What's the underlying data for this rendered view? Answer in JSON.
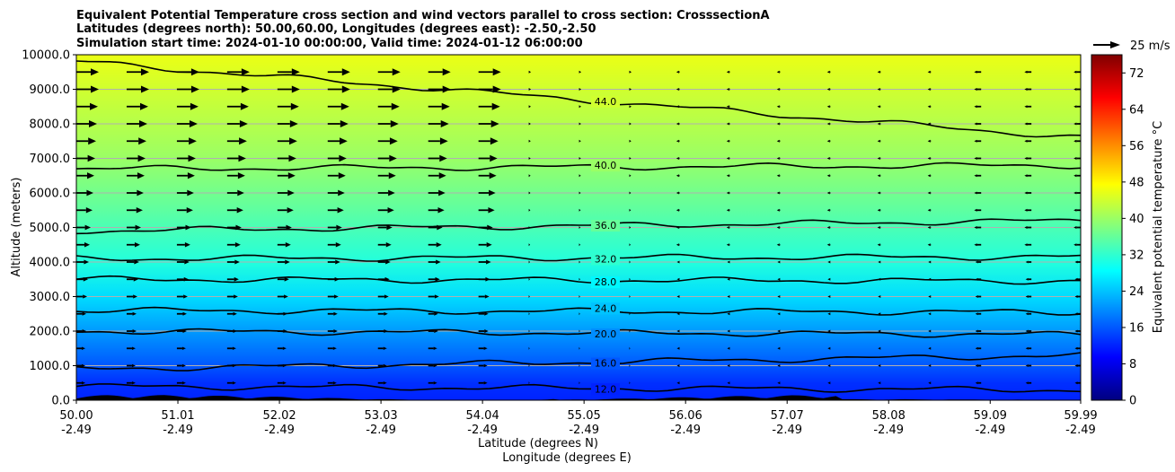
{
  "chart_data": {
    "type": "heatmap",
    "title_lines": [
      "Equivalent Potential Temperature cross section and wind vectors parallel to cross section: CrosssectionA",
      "Latitudes (degrees north): 50.00,60.00, Longitudes (degrees east): -2.50,-2.50",
      "Simulation start time: 2024-01-10 00:00:00, Valid time: 2024-01-12 06:00:00"
    ],
    "xlabel_lat": "Latitude (degrees N)",
    "xlabel_lon": "Longitude (degrees E)",
    "ylabel": "Altitude (meters)",
    "colorbar_label": "Equivalent potential temperature °C",
    "quiver_key_label": "25 m/s",
    "x_range": [
      50.0,
      59.99
    ],
    "ylim": [
      0,
      10000
    ],
    "x_ticks": [
      {
        "lat": "50.00",
        "lon": "-2.49",
        "value": 50.0
      },
      {
        "lat": "51.01",
        "lon": "-2.49",
        "value": 51.01
      },
      {
        "lat": "52.02",
        "lon": "-2.49",
        "value": 52.02
      },
      {
        "lat": "53.03",
        "lon": "-2.49",
        "value": 53.03
      },
      {
        "lat": "54.04",
        "lon": "-2.49",
        "value": 54.04
      },
      {
        "lat": "55.05",
        "lon": "-2.49",
        "value": 55.05
      },
      {
        "lat": "56.06",
        "lon": "-2.49",
        "value": 56.06
      },
      {
        "lat": "57.07",
        "lon": "-2.49",
        "value": 57.07
      },
      {
        "lat": "58.08",
        "lon": "-2.49",
        "value": 58.08
      },
      {
        "lat": "59.09",
        "lon": "-2.49",
        "value": 59.09
      },
      {
        "lat": "59.99",
        "lon": "-2.49",
        "value": 59.99
      }
    ],
    "y_ticks": [
      {
        "label": "0.0",
        "value": 0
      },
      {
        "label": "1000.0",
        "value": 1000
      },
      {
        "label": "2000.0",
        "value": 2000
      },
      {
        "label": "3000.0",
        "value": 3000
      },
      {
        "label": "4000.0",
        "value": 4000
      },
      {
        "label": "5000.0",
        "value": 5000
      },
      {
        "label": "6000.0",
        "value": 6000
      },
      {
        "label": "7000.0",
        "value": 7000
      },
      {
        "label": "8000.0",
        "value": 8000
      },
      {
        "label": "9000.0",
        "value": 9000
      },
      {
        "label": "10000.0",
        "value": 10000
      }
    ],
    "grid": "horizontal",
    "colorbar": {
      "range": [
        0,
        76
      ],
      "ticks": [
        {
          "label": "0",
          "value": 0
        },
        {
          "label": "8",
          "value": 8
        },
        {
          "label": "16",
          "value": 16
        },
        {
          "label": "24",
          "value": 24
        },
        {
          "label": "32",
          "value": 32
        },
        {
          "label": "40",
          "value": 40
        },
        {
          "label": "48",
          "value": 48
        },
        {
          "label": "56",
          "value": 56
        },
        {
          "label": "64",
          "value": 64
        },
        {
          "label": "72",
          "value": 72
        }
      ],
      "colormap": "jet"
    },
    "field_profile": [
      {
        "altitude": 0,
        "theta_e": 12
      },
      {
        "altitude": 500,
        "theta_e": 13
      },
      {
        "altitude": 1000,
        "theta_e": 16
      },
      {
        "altitude": 2000,
        "theta_e": 21
      },
      {
        "altitude": 3000,
        "theta_e": 26
      },
      {
        "altitude": 4000,
        "theta_e": 31
      },
      {
        "altitude": 5000,
        "theta_e": 34
      },
      {
        "altitude": 6000,
        "theta_e": 37
      },
      {
        "altitude": 7000,
        "theta_e": 40
      },
      {
        "altitude": 8000,
        "theta_e": 42
      },
      {
        "altitude": 9000,
        "theta_e": 44
      },
      {
        "altitude": 10000,
        "theta_e": 46
      }
    ],
    "contours": [
      {
        "label": "12.0",
        "value": 12,
        "altitude_west": 400,
        "altitude_east": 300
      },
      {
        "label": "16.0",
        "value": 16,
        "altitude_west": 900,
        "altitude_east": 1300
      },
      {
        "label": "20.0",
        "value": 20,
        "altitude_west": 2000,
        "altitude_east": 1900
      },
      {
        "label": "24.0",
        "value": 24,
        "altitude_west": 2600,
        "altitude_east": 2550
      },
      {
        "label": "28.0",
        "value": 28,
        "altitude_west": 3500,
        "altitude_east": 3450
      },
      {
        "label": "32.0",
        "value": 32,
        "altitude_west": 4100,
        "altitude_east": 4150
      },
      {
        "label": "36.0",
        "value": 36,
        "altitude_west": 4900,
        "altitude_east": 5200
      },
      {
        "label": "40.0",
        "value": 40,
        "altitude_west": 6700,
        "altitude_east": 6800
      },
      {
        "label": "44.0",
        "value": 44,
        "altitude_west": 9800,
        "altitude_east": 7600
      }
    ],
    "wind": {
      "columns_lat": [
        50.0,
        50.5,
        51.0,
        51.5,
        52.0,
        52.5,
        53.0,
        53.5,
        54.0,
        54.5,
        55.0,
        55.5,
        56.0,
        56.5,
        57.0,
        57.5,
        58.0,
        58.5,
        59.0,
        59.5,
        59.99
      ],
      "rows_alt": [
        500,
        1000,
        1500,
        2000,
        2500,
        3000,
        3500,
        4000,
        4500,
        5000,
        5500,
        6000,
        6500,
        7000,
        7500,
        8000,
        8500,
        9000,
        9500
      ],
      "profile_west_ms": [
        10,
        10,
        10,
        11,
        11,
        12,
        13,
        14,
        15,
        16,
        18,
        19,
        20,
        21,
        22,
        23,
        24,
        25,
        25
      ],
      "profile_east_ms": [
        -5,
        -5,
        -5,
        -5,
        -5,
        -5,
        -5,
        -5,
        -6,
        -6,
        -6,
        -6,
        -6,
        -6,
        -6,
        -6,
        -6,
        -6,
        -6
      ]
    },
    "terrain_altitude": 150
  }
}
